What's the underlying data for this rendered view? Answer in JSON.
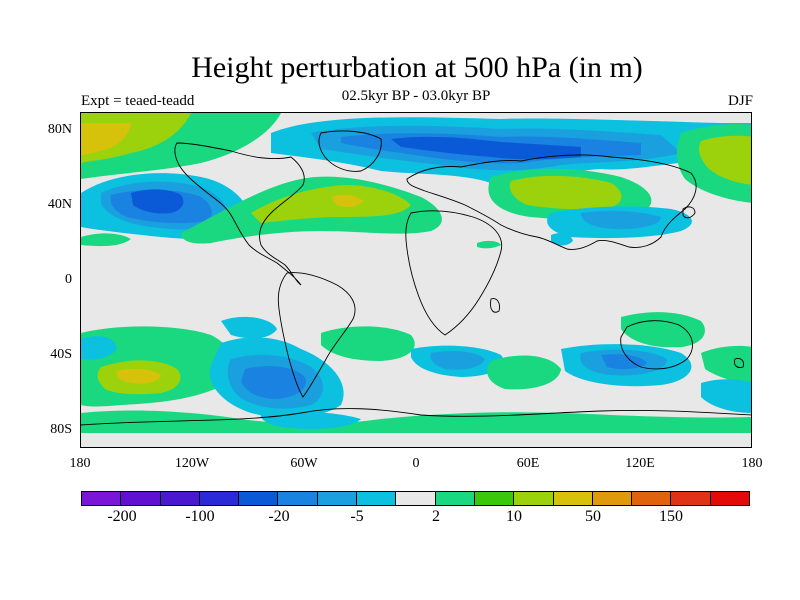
{
  "header": {
    "title": "Height perturbation at 500 hPa (in m)",
    "subtitle": "02.5kyr BP - 03.0kyr BP",
    "left_label": "Expt = teaed-teadd",
    "right_label": "DJF"
  },
  "map": {
    "projection": "cylindrical-equidistant",
    "lat_ticks": [
      "80N",
      "40N",
      "0",
      "40S",
      "80S"
    ],
    "lon_ticks": [
      "180",
      "120W",
      "60W",
      "0",
      "60E",
      "120E",
      "180"
    ]
  },
  "colorbar": {
    "colors": [
      "#7a16d8",
      "#5f10d0",
      "#4a18cf",
      "#2a2ad8",
      "#0a5ad8",
      "#1a82e0",
      "#1aa0de",
      "#0cc0e0",
      "#e8e8e8",
      "#1ad880",
      "#3cc80a",
      "#9cd20c",
      "#d6c20a",
      "#de9a0a",
      "#e0620c",
      "#e03216",
      "#e40a0a"
    ],
    "labels": [
      "-200",
      "-100",
      "-20",
      "-5",
      "2",
      "10",
      "50",
      "150"
    ]
  },
  "legend_colors": {
    "neutral": "#e8e8e8",
    "cyan": "#0cc0e0",
    "light_blue": "#1aa0de",
    "blue": "#1a82e0",
    "dark_blue": "#0a5ad8",
    "green": "#1ad880",
    "lime": "#9cd20c",
    "yellow": "#d6c20a"
  }
}
